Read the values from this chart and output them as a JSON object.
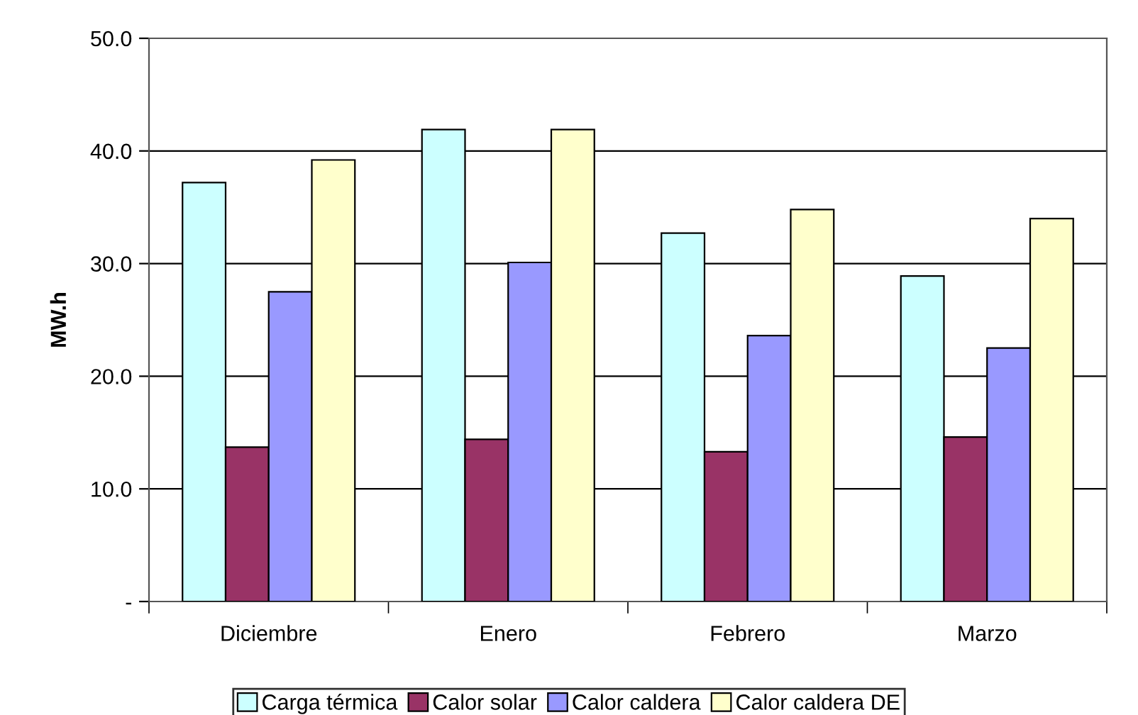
{
  "chart_data": {
    "type": "bar",
    "ylabel": "MW.h",
    "categories": [
      "Diciembre",
      "Enero",
      "Febrero",
      "Marzo"
    ],
    "series": [
      {
        "name": "Carga térmica",
        "color": "#ccffff",
        "values": [
          37.2,
          41.9,
          32.7,
          28.9
        ]
      },
      {
        "name": "Calor solar",
        "color": "#993366",
        "values": [
          13.7,
          14.4,
          13.3,
          14.6
        ]
      },
      {
        "name": "Calor caldera",
        "color": "#9999ff",
        "values": [
          27.5,
          30.1,
          23.6,
          22.5
        ]
      },
      {
        "name": "Calor caldera DE",
        "color": "#ffffcc",
        "values": [
          39.2,
          41.9,
          34.8,
          34.0
        ]
      }
    ],
    "ylim": [
      0,
      50
    ],
    "yticks": [
      {
        "value": 0,
        "label": "-"
      },
      {
        "value": 10,
        "label": "10.0"
      },
      {
        "value": 20,
        "label": "20.0"
      },
      {
        "value": 30,
        "label": "30.0"
      },
      {
        "value": 40,
        "label": "40.0"
      },
      {
        "value": 50,
        "label": "50.0"
      }
    ],
    "grid": "y",
    "legend": "bottom"
  }
}
